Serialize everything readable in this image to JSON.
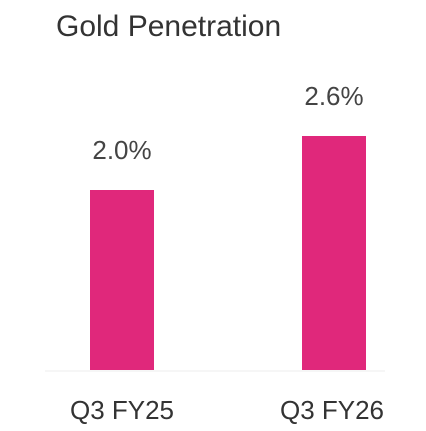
{
  "chart_data": {
    "type": "bar",
    "title": "Gold Penetration",
    "categories": [
      "Q3 FY25",
      "Q3 FY26"
    ],
    "values": [
      2.0,
      2.6
    ],
    "value_labels": [
      "2.0%",
      "2.6%"
    ],
    "color": "#e0287b"
  }
}
